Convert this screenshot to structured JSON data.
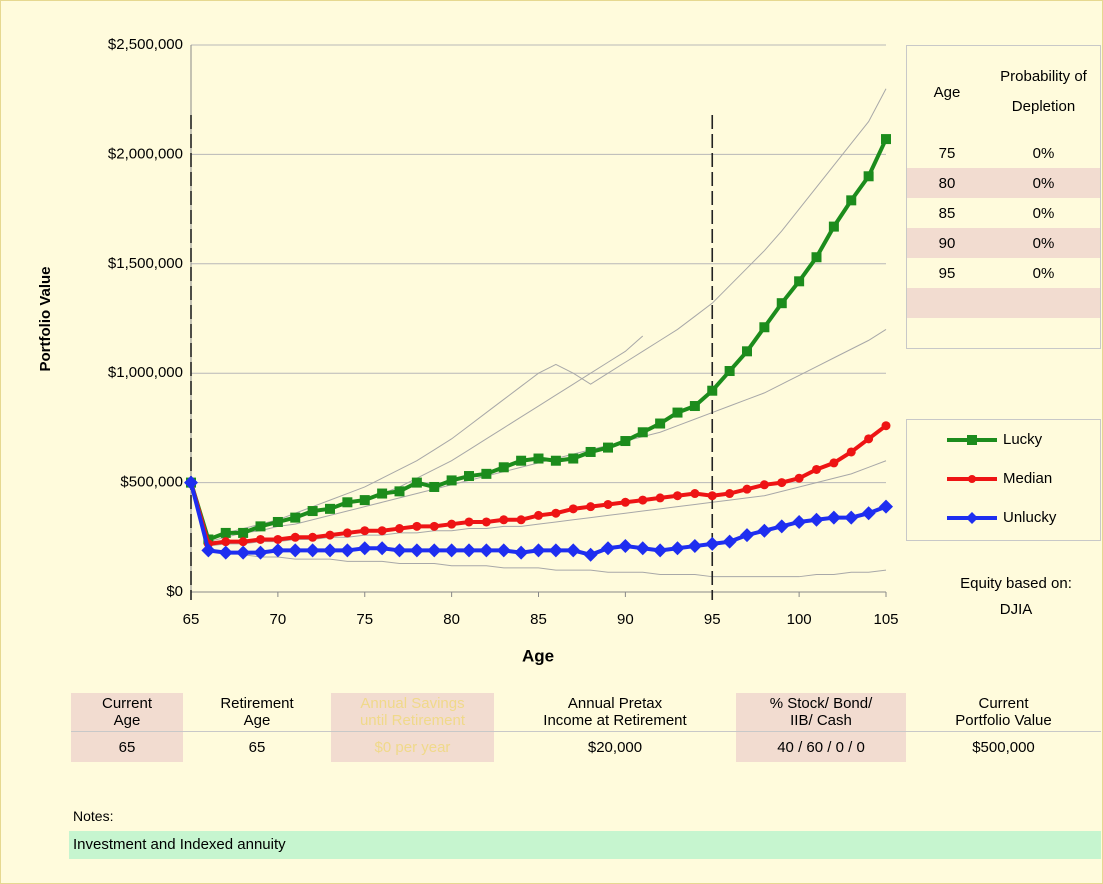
{
  "chart_data": {
    "type": "line",
    "x_label": "Age",
    "y_label": "Portfolio Value",
    "x": [
      65,
      66,
      67,
      68,
      69,
      70,
      71,
      72,
      73,
      74,
      75,
      76,
      77,
      78,
      79,
      80,
      81,
      82,
      83,
      84,
      85,
      86,
      87,
      88,
      89,
      90,
      91,
      92,
      93,
      94,
      95,
      96,
      97,
      98,
      99,
      100,
      101,
      102,
      103,
      104,
      105
    ],
    "xlim": [
      65,
      105
    ],
    "xticks": [
      65,
      70,
      75,
      80,
      85,
      90,
      95,
      100,
      105
    ],
    "ylim": [
      0,
      2500000
    ],
    "yticks": [
      {
        "value": 0,
        "label": "$0"
      },
      {
        "value": 500000,
        "label": "$500,000"
      },
      {
        "value": 1000000,
        "label": "$1,000,000"
      },
      {
        "value": 1500000,
        "label": "$1,500,000"
      },
      {
        "value": 2000000,
        "label": "$2,000,000"
      },
      {
        "value": 2500000,
        "label": "$2,500,000"
      }
    ],
    "grid": true,
    "reference_lines": [
      65,
      95
    ],
    "simulation_color": "#a8a8a8",
    "simulations": [
      [
        500000,
        250000,
        270000,
        290000,
        310000,
        330000,
        360000,
        390000,
        420000,
        450000,
        480000,
        520000,
        560000,
        600000,
        650000,
        700000,
        760000,
        820000,
        880000,
        940000,
        1000000,
        1040000,
        1000000,
        950000,
        1000000,
        1050000,
        1100000,
        1150000,
        1200000,
        1260000,
        1320000,
        1400000,
        1480000,
        1560000,
        1650000,
        1750000,
        1850000,
        1950000,
        2050000,
        2150000,
        2300000
      ],
      [
        500000,
        240000,
        260000,
        280000,
        300000,
        320000,
        340000,
        360000,
        380000,
        400000,
        420000,
        450000,
        480000,
        520000,
        560000,
        600000,
        650000,
        700000,
        750000,
        800000,
        850000,
        900000,
        950000,
        1000000,
        1050000,
        1100000,
        1170000,
        null,
        null,
        null,
        null,
        null,
        null,
        null,
        null,
        null,
        null,
        null,
        null,
        null,
        null
      ],
      [
        500000,
        200000,
        180000,
        170000,
        160000,
        160000,
        150000,
        150000,
        150000,
        140000,
        140000,
        140000,
        130000,
        130000,
        130000,
        120000,
        120000,
        120000,
        110000,
        110000,
        110000,
        100000,
        100000,
        100000,
        90000,
        90000,
        90000,
        80000,
        80000,
        80000,
        70000,
        70000,
        70000,
        70000,
        70000,
        70000,
        80000,
        80000,
        90000,
        90000,
        100000
      ],
      [
        500000,
        230000,
        250000,
        270000,
        280000,
        300000,
        310000,
        330000,
        350000,
        370000,
        390000,
        410000,
        430000,
        450000,
        470000,
        490000,
        510000,
        530000,
        550000,
        570000,
        590000,
        610000,
        630000,
        650000,
        670000,
        690000,
        710000,
        730000,
        760000,
        790000,
        820000,
        850000,
        880000,
        910000,
        950000,
        990000,
        1030000,
        1070000,
        1110000,
        1150000,
        1200000
      ],
      [
        500000,
        210000,
        220000,
        220000,
        230000,
        230000,
        240000,
        240000,
        250000,
        250000,
        260000,
        260000,
        270000,
        270000,
        280000,
        280000,
        290000,
        290000,
        300000,
        300000,
        310000,
        320000,
        330000,
        340000,
        350000,
        360000,
        370000,
        380000,
        390000,
        400000,
        410000,
        420000,
        430000,
        440000,
        460000,
        480000,
        500000,
        520000,
        540000,
        570000,
        600000
      ]
    ],
    "series": [
      {
        "name": "Lucky",
        "color": "#1c8c1c",
        "marker": "square",
        "values": [
          500000,
          240000,
          270000,
          270000,
          300000,
          320000,
          340000,
          370000,
          380000,
          410000,
          420000,
          450000,
          460000,
          500000,
          480000,
          510000,
          530000,
          540000,
          570000,
          600000,
          610000,
          600000,
          610000,
          640000,
          660000,
          690000,
          730000,
          770000,
          820000,
          850000,
          920000,
          1010000,
          1100000,
          1210000,
          1320000,
          1420000,
          1530000,
          1670000,
          1790000,
          1900000,
          2070000
        ]
      },
      {
        "name": "Median",
        "color": "#ee1414",
        "marker": "circle",
        "values": [
          500000,
          220000,
          230000,
          230000,
          240000,
          240000,
          250000,
          250000,
          260000,
          270000,
          280000,
          280000,
          290000,
          300000,
          300000,
          310000,
          320000,
          320000,
          330000,
          330000,
          350000,
          360000,
          380000,
          390000,
          400000,
          410000,
          420000,
          430000,
          440000,
          450000,
          440000,
          450000,
          470000,
          490000,
          500000,
          520000,
          560000,
          590000,
          640000,
          700000,
          760000
        ]
      },
      {
        "name": "Unlucky",
        "color": "#1e2ef0",
        "marker": "diamond",
        "values": [
          500000,
          190000,
          180000,
          180000,
          180000,
          190000,
          190000,
          190000,
          190000,
          190000,
          200000,
          200000,
          190000,
          190000,
          190000,
          190000,
          190000,
          190000,
          190000,
          180000,
          190000,
          190000,
          190000,
          170000,
          200000,
          210000,
          200000,
          190000,
          200000,
          210000,
          220000,
          230000,
          260000,
          280000,
          300000,
          320000,
          330000,
          340000,
          340000,
          360000,
          390000
        ]
      }
    ],
    "legend_position": "right"
  },
  "depletion_table": {
    "header": [
      "Age",
      "Probability of Depletion"
    ],
    "rows": [
      [
        "75",
        "0%"
      ],
      [
        "80",
        "0%"
      ],
      [
        "85",
        "0%"
      ],
      [
        "90",
        "0%"
      ],
      [
        "95",
        "0%"
      ]
    ]
  },
  "equity": {
    "label": "Equity based on:",
    "value": "DJIA"
  },
  "inputs": {
    "headers": [
      [
        "Current",
        "Age"
      ],
      [
        "Retirement",
        "Age"
      ],
      [
        "Annual Savings",
        "until Retirement"
      ],
      [
        "Annual Pretax",
        "Income at Retirement"
      ],
      [
        "% Stock/ Bond/",
        "IIB/ Cash"
      ],
      [
        "Current",
        "Portfolio Value"
      ]
    ],
    "values": [
      "65",
      "65",
      "$0 per year",
      "$20,000",
      "40 / 60 / 0 / 0",
      "$500,000"
    ]
  },
  "notes": {
    "label": "Notes:",
    "text": "Investment and Indexed annuity"
  }
}
